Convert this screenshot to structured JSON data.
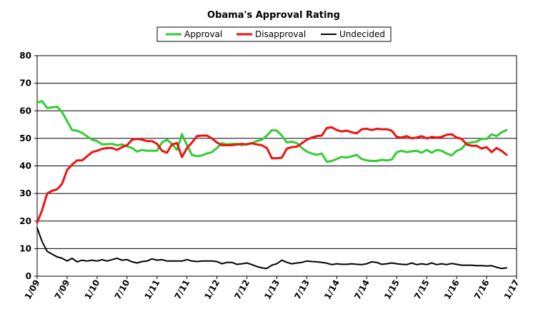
{
  "chart_data": {
    "type": "line",
    "title": "Obama's Approval Rating",
    "xlabel": "",
    "ylabel": "",
    "ylim": [
      0,
      80
    ],
    "yticks": [
      0,
      10,
      20,
      30,
      40,
      50,
      60,
      70,
      80
    ],
    "x_range": [
      "2009-01",
      "2017-01"
    ],
    "xticks": [
      "1/09",
      "7/09",
      "1/10",
      "7/10",
      "1/11",
      "7/11",
      "1/12",
      "7/12",
      "1/13",
      "7/13",
      "1/14",
      "7/14",
      "1/15",
      "7/15",
      "1/16",
      "7/16",
      "1/17"
    ],
    "grid": "horizontal",
    "legend_position": "top",
    "series": [
      {
        "name": "Approval",
        "color": "#33cc33",
        "points": [
          [
            "2009-01",
            63
          ],
          [
            "2009-02",
            63.5
          ],
          [
            "2009-03",
            61
          ],
          [
            "2009-05",
            61.5
          ],
          [
            "2009-06",
            59.5
          ],
          [
            "2009-08",
            53
          ],
          [
            "2009-09",
            52.8
          ],
          [
            "2009-10",
            52
          ],
          [
            "2009-12",
            49.5
          ],
          [
            "2010-01",
            49
          ],
          [
            "2010-02",
            47.8
          ],
          [
            "2010-04",
            48
          ],
          [
            "2010-05",
            47.5
          ],
          [
            "2010-06",
            47.8
          ],
          [
            "2010-08",
            46.5
          ],
          [
            "2010-09",
            45.2
          ],
          [
            "2010-10",
            45.8
          ],
          [
            "2010-11",
            45.5
          ],
          [
            "2010-12",
            45.5
          ],
          [
            "2011-01",
            45.5
          ],
          [
            "2011-02",
            48.5
          ],
          [
            "2011-03",
            49.5
          ],
          [
            "2011-04",
            48
          ],
          [
            "2011-05",
            45.8
          ],
          [
            "2011-06",
            51.5
          ],
          [
            "2011-07",
            47.5
          ],
          [
            "2011-08",
            44
          ],
          [
            "2011-09",
            43.5
          ],
          [
            "2011-10",
            43.8
          ],
          [
            "2011-11",
            44.5
          ],
          [
            "2011-12",
            45
          ],
          [
            "2012-01",
            46.5
          ],
          [
            "2012-02",
            48.3
          ],
          [
            "2012-03",
            47.8
          ],
          [
            "2012-04",
            48
          ],
          [
            "2012-05",
            48
          ],
          [
            "2012-06",
            47.5
          ],
          [
            "2012-07",
            48
          ],
          [
            "2012-08",
            48.3
          ],
          [
            "2012-09",
            49
          ],
          [
            "2012-10",
            49.5
          ],
          [
            "2012-11",
            51
          ],
          [
            "2012-12",
            53
          ],
          [
            "2013-01",
            52.8
          ],
          [
            "2013-02",
            51
          ],
          [
            "2013-03",
            48.5
          ],
          [
            "2013-04",
            48.8
          ],
          [
            "2013-05",
            48.3
          ],
          [
            "2013-06",
            46.5
          ],
          [
            "2013-07",
            45.2
          ],
          [
            "2013-08",
            44.5
          ],
          [
            "2013-09",
            44
          ],
          [
            "2013-10",
            44.5
          ],
          [
            "2013-11",
            41.5
          ],
          [
            "2013-12",
            41.8
          ],
          [
            "2014-01",
            42.5
          ],
          [
            "2014-02",
            43.3
          ],
          [
            "2014-03",
            43
          ],
          [
            "2014-04",
            43.5
          ],
          [
            "2014-05",
            44
          ],
          [
            "2014-06",
            42.5
          ],
          [
            "2014-07",
            42
          ],
          [
            "2014-08",
            41.8
          ],
          [
            "2014-09",
            41.8
          ],
          [
            "2014-10",
            42.2
          ],
          [
            "2014-11",
            42
          ],
          [
            "2014-12",
            42.3
          ],
          [
            "2015-01",
            45
          ],
          [
            "2015-02",
            45.5
          ],
          [
            "2015-03",
            45
          ],
          [
            "2015-04",
            45.3
          ],
          [
            "2015-05",
            45.5
          ],
          [
            "2015-06",
            44.8
          ],
          [
            "2015-07",
            45.8
          ],
          [
            "2015-08",
            44.8
          ],
          [
            "2015-09",
            45.8
          ],
          [
            "2015-10",
            45.5
          ],
          [
            "2015-11",
            44.5
          ],
          [
            "2015-12",
            43.8
          ],
          [
            "2016-01",
            45.5
          ],
          [
            "2016-02",
            46.2
          ],
          [
            "2016-03",
            48.3
          ],
          [
            "2016-04",
            48.5
          ],
          [
            "2016-05",
            48.8
          ],
          [
            "2016-06",
            49.8
          ],
          [
            "2016-07",
            49.8
          ],
          [
            "2016-08",
            51.5
          ],
          [
            "2016-09",
            50.8
          ],
          [
            "2016-10",
            52.2
          ],
          [
            "2016-11",
            53
          ]
        ]
      },
      {
        "name": "Disapproval",
        "color": "#ee1111",
        "points": [
          [
            "2009-01",
            19.5
          ],
          [
            "2009-02",
            24
          ],
          [
            "2009-03",
            30
          ],
          [
            "2009-04",
            31
          ],
          [
            "2009-05",
            31.5
          ],
          [
            "2009-06",
            33.5
          ],
          [
            "2009-07",
            38.5
          ],
          [
            "2009-08",
            40.5
          ],
          [
            "2009-09",
            42
          ],
          [
            "2009-10",
            42
          ],
          [
            "2009-11",
            43.5
          ],
          [
            "2009-12",
            45
          ],
          [
            "2010-01",
            45.5
          ],
          [
            "2010-02",
            46.2
          ],
          [
            "2010-03",
            46.5
          ],
          [
            "2010-04",
            46.5
          ],
          [
            "2010-05",
            45.8
          ],
          [
            "2010-06",
            46.8
          ],
          [
            "2010-07",
            47.5
          ],
          [
            "2010-08",
            49.5
          ],
          [
            "2010-09",
            49.8
          ],
          [
            "2010-10",
            49.5
          ],
          [
            "2010-11",
            49
          ],
          [
            "2010-12",
            49
          ],
          [
            "2011-01",
            48
          ],
          [
            "2011-02",
            45.5
          ],
          [
            "2011-03",
            44.8
          ],
          [
            "2011-04",
            47.8
          ],
          [
            "2011-05",
            48.3
          ],
          [
            "2011-06",
            43.2
          ],
          [
            "2011-07",
            46.5
          ],
          [
            "2011-08",
            48.5
          ],
          [
            "2011-09",
            50.8
          ],
          [
            "2011-10",
            51
          ],
          [
            "2011-11",
            51
          ],
          [
            "2011-12",
            50
          ],
          [
            "2012-01",
            48.5
          ],
          [
            "2012-02",
            47.5
          ],
          [
            "2012-03",
            47.5
          ],
          [
            "2012-04",
            47.5
          ],
          [
            "2012-05",
            47.8
          ],
          [
            "2012-06",
            48
          ],
          [
            "2012-07",
            47.8
          ],
          [
            "2012-08",
            48.2
          ],
          [
            "2012-09",
            47.8
          ],
          [
            "2012-10",
            47.5
          ],
          [
            "2012-11",
            46.5
          ],
          [
            "2012-12",
            42.8
          ],
          [
            "2013-01",
            42.8
          ],
          [
            "2013-02",
            43
          ],
          [
            "2013-03",
            46.3
          ],
          [
            "2013-04",
            46.8
          ],
          [
            "2013-05",
            47
          ],
          [
            "2013-06",
            48.2
          ],
          [
            "2013-07",
            49.5
          ],
          [
            "2013-08",
            50.3
          ],
          [
            "2013-09",
            50.8
          ],
          [
            "2013-10",
            51
          ],
          [
            "2013-11",
            53.8
          ],
          [
            "2013-12",
            54
          ],
          [
            "2014-01",
            53
          ],
          [
            "2014-02",
            52.5
          ],
          [
            "2014-03",
            52.8
          ],
          [
            "2014-04",
            52.2
          ],
          [
            "2014-05",
            51.8
          ],
          [
            "2014-06",
            53.3
          ],
          [
            "2014-07",
            53.5
          ],
          [
            "2014-08",
            53
          ],
          [
            "2014-09",
            53.5
          ],
          [
            "2014-10",
            53.3
          ],
          [
            "2014-11",
            53.3
          ],
          [
            "2014-12",
            52.8
          ],
          [
            "2015-01",
            50.5
          ],
          [
            "2015-02",
            50.3
          ],
          [
            "2015-03",
            50.8
          ],
          [
            "2015-04",
            50
          ],
          [
            "2015-05",
            50.3
          ],
          [
            "2015-06",
            50.8
          ],
          [
            "2015-07",
            50
          ],
          [
            "2015-08",
            50.5
          ],
          [
            "2015-09",
            50.3
          ],
          [
            "2015-10",
            50.5
          ],
          [
            "2015-11",
            51.3
          ],
          [
            "2015-12",
            51.5
          ],
          [
            "2016-01",
            50.3
          ],
          [
            "2016-02",
            49.8
          ],
          [
            "2016-03",
            47.8
          ],
          [
            "2016-04",
            47.3
          ],
          [
            "2016-05",
            47.3
          ],
          [
            "2016-06",
            46.3
          ],
          [
            "2016-07",
            46.8
          ],
          [
            "2016-08",
            45
          ],
          [
            "2016-09",
            46.5
          ],
          [
            "2016-10",
            45.5
          ],
          [
            "2016-11",
            44
          ]
        ]
      },
      {
        "name": "Undecided",
        "color": "#000000",
        "points": [
          [
            "2009-01",
            17.5
          ],
          [
            "2009-02",
            12.5
          ],
          [
            "2009-03",
            9
          ],
          [
            "2009-04",
            8
          ],
          [
            "2009-05",
            7
          ],
          [
            "2009-06",
            6.5
          ],
          [
            "2009-07",
            5.5
          ],
          [
            "2009-08",
            6.5
          ],
          [
            "2009-09",
            5.2
          ],
          [
            "2009-10",
            5.8
          ],
          [
            "2009-11",
            5.5
          ],
          [
            "2009-12",
            5.8
          ],
          [
            "2010-01",
            5.5
          ],
          [
            "2010-02",
            6
          ],
          [
            "2010-03",
            5.5
          ],
          [
            "2010-04",
            6
          ],
          [
            "2010-05",
            6.5
          ],
          [
            "2010-06",
            5.8
          ],
          [
            "2010-07",
            6
          ],
          [
            "2010-08",
            5.2
          ],
          [
            "2010-09",
            4.8
          ],
          [
            "2010-10",
            5.3
          ],
          [
            "2010-11",
            5.5
          ],
          [
            "2010-12",
            6.3
          ],
          [
            "2011-01",
            5.8
          ],
          [
            "2011-02",
            6
          ],
          [
            "2011-03",
            5.5
          ],
          [
            "2011-04",
            5.5
          ],
          [
            "2011-05",
            5.5
          ],
          [
            "2011-06",
            5.5
          ],
          [
            "2011-07",
            6
          ],
          [
            "2011-08",
            5.5
          ],
          [
            "2011-09",
            5.3
          ],
          [
            "2011-10",
            5.5
          ],
          [
            "2011-11",
            5.5
          ],
          [
            "2011-12",
            5.5
          ],
          [
            "2012-01",
            5.3
          ],
          [
            "2012-02",
            4.5
          ],
          [
            "2012-03",
            5
          ],
          [
            "2012-04",
            5
          ],
          [
            "2012-05",
            4.3
          ],
          [
            "2012-06",
            4.5
          ],
          [
            "2012-07",
            4.8
          ],
          [
            "2012-08",
            4.2
          ],
          [
            "2012-09",
            3.5
          ],
          [
            "2012-10",
            3
          ],
          [
            "2012-11",
            2.8
          ],
          [
            "2012-12",
            4
          ],
          [
            "2013-01",
            4.5
          ],
          [
            "2013-02",
            5.8
          ],
          [
            "2013-03",
            5
          ],
          [
            "2013-04",
            4.5
          ],
          [
            "2013-05",
            4.8
          ],
          [
            "2013-06",
            5
          ],
          [
            "2013-07",
            5.5
          ],
          [
            "2013-08",
            5.3
          ],
          [
            "2013-09",
            5.2
          ],
          [
            "2013-10",
            5
          ],
          [
            "2013-11",
            4.7
          ],
          [
            "2013-12",
            4.2
          ],
          [
            "2014-01",
            4.5
          ],
          [
            "2014-02",
            4.3
          ],
          [
            "2014-03",
            4.3
          ],
          [
            "2014-04",
            4.5
          ],
          [
            "2014-05",
            4.3
          ],
          [
            "2014-06",
            4.2
          ],
          [
            "2014-07",
            4.5
          ],
          [
            "2014-08",
            5.2
          ],
          [
            "2014-09",
            5
          ],
          [
            "2014-10",
            4.3
          ],
          [
            "2014-11",
            4.5
          ],
          [
            "2014-12",
            4.8
          ],
          [
            "2015-01",
            4.5
          ],
          [
            "2015-02",
            4.3
          ],
          [
            "2015-03",
            4.2
          ],
          [
            "2015-04",
            4.8
          ],
          [
            "2015-05",
            4.2
          ],
          [
            "2015-06",
            4.5
          ],
          [
            "2015-07",
            4.2
          ],
          [
            "2015-08",
            4.8
          ],
          [
            "2015-09",
            4.2
          ],
          [
            "2015-10",
            4.5
          ],
          [
            "2015-11",
            4.2
          ],
          [
            "2015-12",
            4.6
          ],
          [
            "2016-01",
            4.3
          ],
          [
            "2016-02",
            4
          ],
          [
            "2016-03",
            4
          ],
          [
            "2016-04",
            4
          ],
          [
            "2016-05",
            3.8
          ],
          [
            "2016-06",
            3.8
          ],
          [
            "2016-07",
            3.7
          ],
          [
            "2016-08",
            3.8
          ],
          [
            "2016-09",
            3.2
          ],
          [
            "2016-10",
            2.8
          ],
          [
            "2016-11",
            3
          ]
        ]
      }
    ]
  }
}
